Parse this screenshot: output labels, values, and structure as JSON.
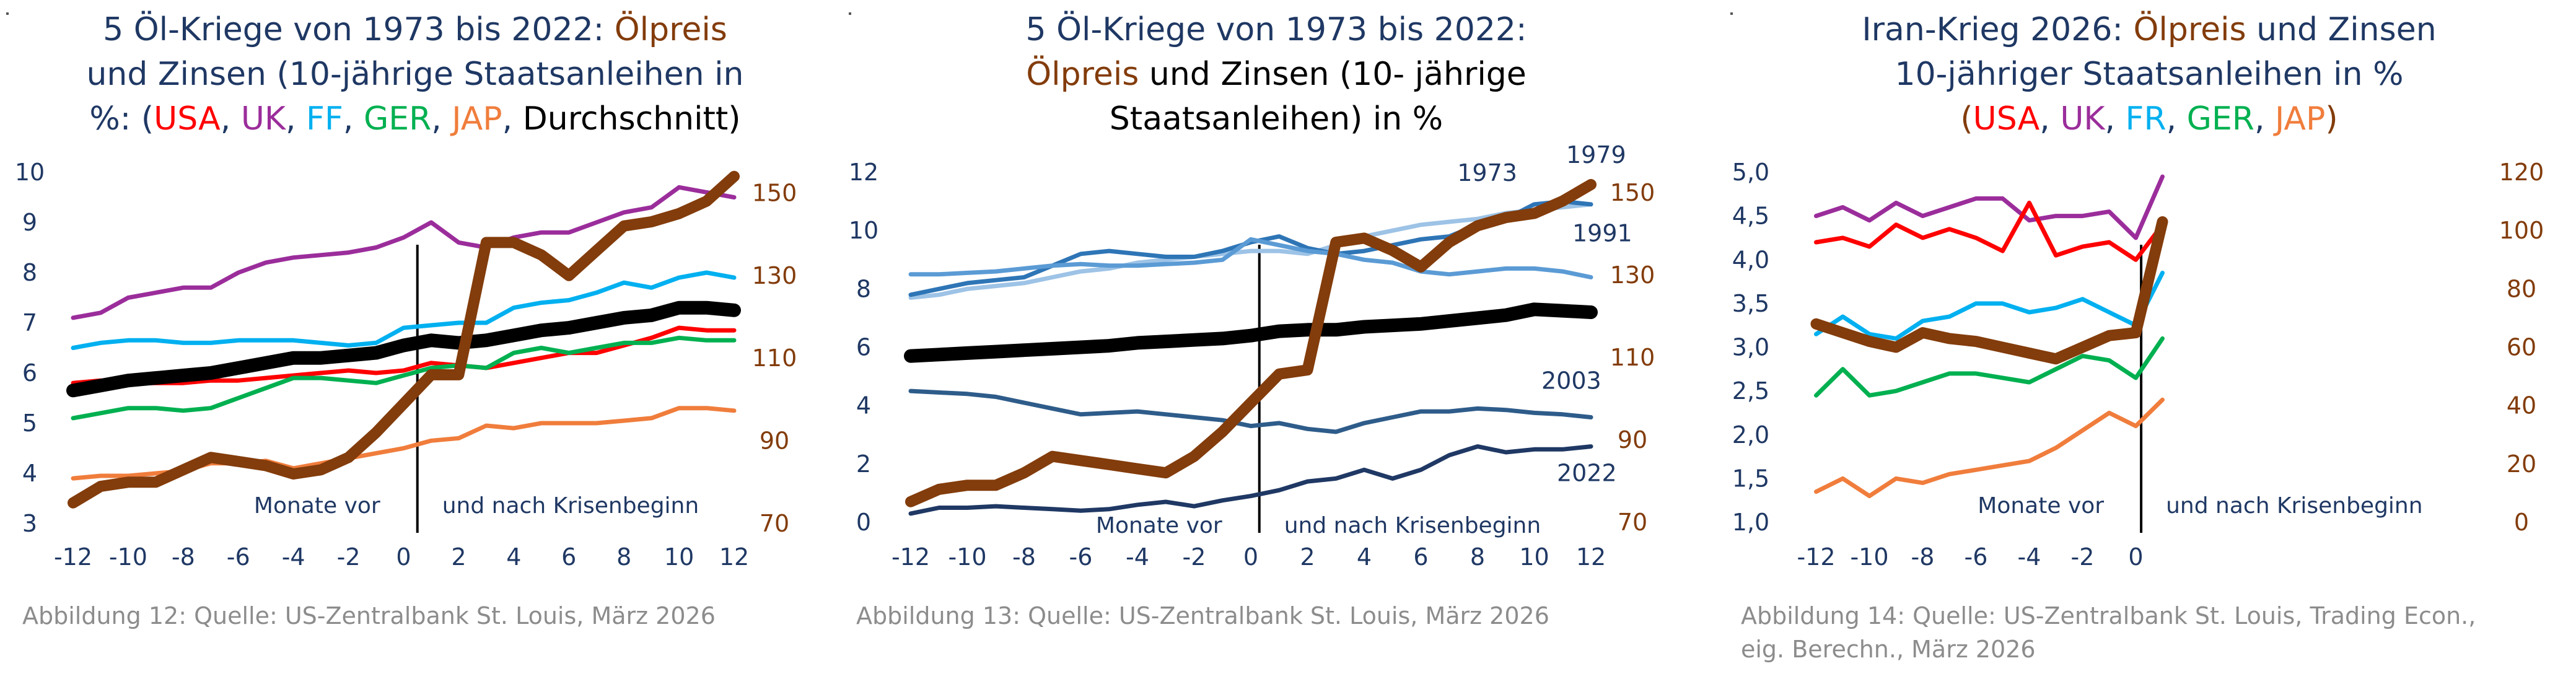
{
  "colors": {
    "USA": "#ff0000",
    "UK": "#9b2d9b",
    "FF": "#00b0f0",
    "GER": "#00b050",
    "JAP": "#f07d3c",
    "avg": "#000000",
    "oil": "#833c0b",
    "title": "#1f3864",
    "caption": "#8c8c8c"
  },
  "panel1": {
    "title_l1a": "5 Öl-Kriege von 1973 bis 2022: ",
    "title_l1b": "Ölpreis",
    "title_l2": "und Zinsen (10-jährige Staatsanleihen in",
    "title_l3a": "%: (",
    "title_usa": "USA",
    "comma": ", ",
    "title_uk": "UK",
    "title_ff": "FF",
    "title_ger": "GER",
    "title_jap": "JAP",
    "title_avg": "Durchschnitt)",
    "caption": "Abbildung 12: Quelle: US-Zentralbank St. Louis, März 2026"
  },
  "panel2": {
    "title_l1": "5 Öl-Kriege von 1973 bis 2022:",
    "title_l2a": "Ölpreis",
    "title_l2b": " und Zinsen (10- jährige",
    "title_l3": "Staatsanleihen) in %",
    "caption": "Abbildung 13: Quelle: US-Zentralbank St. Louis, März 2026"
  },
  "panel3": {
    "title_l1a": "Iran-Krieg 2026: ",
    "title_l1b": "Ölpreis",
    "title_l1c": " und Zinsen",
    "title_l2": "10-jähriger Staatsanleihen in %",
    "title_l3a": "(",
    "title_usa": "USA",
    "comma": ", ",
    "title_uk": "UK",
    "title_fr": "FR",
    "title_ger": "GER",
    "title_jap": "JAP",
    "title_l3z": ")",
    "caption_l1": "Abbildung 14: Quelle: US-Zentralbank St. Louis, Trading Econ.,",
    "caption_l2": "eig. Berechn., März 2026"
  },
  "chart_data": [
    {
      "type": "line",
      "title": "5 Öl-Kriege von 1973 bis 2022: Ölpreis und Zinsen (10-jährige Staatsanleihen in %: (USA, UK, FF, GER, JAP, Durchschnitt)",
      "x": [
        -12,
        -11,
        -10,
        -9,
        -8,
        -7,
        -6,
        -5,
        -4,
        -3,
        -2,
        -1,
        0,
        1,
        2,
        3,
        4,
        5,
        6,
        7,
        8,
        9,
        10,
        11,
        12
      ],
      "xticks": [
        "-12",
        "-10",
        "-8",
        "-6",
        "-4",
        "-2",
        "0",
        "2",
        "4",
        "6",
        "8",
        "10",
        "12"
      ],
      "xtick_values": [
        -12,
        -10,
        -8,
        -6,
        -4,
        -2,
        0,
        2,
        4,
        6,
        8,
        10,
        12
      ],
      "ylim": [
        3,
        10
      ],
      "yticks": [
        "3",
        "4",
        "5",
        "6",
        "7",
        "8",
        "9",
        "10"
      ],
      "ytick_values": [
        3,
        4,
        5,
        6,
        7,
        8,
        9,
        10
      ],
      "y2lim": [
        70,
        155
      ],
      "y2ticks": [
        "70",
        "90",
        "110",
        "130",
        "150"
      ],
      "y2tick_values": [
        70,
        90,
        110,
        130,
        150
      ],
      "annotation_left": "Monate vor",
      "annotation_right": "und nach Krisenbeginn",
      "series": [
        {
          "name": "UK",
          "color": "#9b2d9b",
          "width": 7,
          "axis": "left",
          "values": [
            7.1,
            7.2,
            7.5,
            7.6,
            7.7,
            7.7,
            8.0,
            8.2,
            8.3,
            8.35,
            8.4,
            8.5,
            8.7,
            9.0,
            8.6,
            8.5,
            8.7,
            8.8,
            8.8,
            9.0,
            9.2,
            9.3,
            9.7,
            9.6,
            9.5
          ]
        },
        {
          "name": "FF",
          "color": "#00b0f0",
          "width": 7,
          "axis": "left",
          "values": [
            6.5,
            6.6,
            6.65,
            6.65,
            6.6,
            6.6,
            6.65,
            6.65,
            6.65,
            6.6,
            6.55,
            6.6,
            6.9,
            6.95,
            7.0,
            7.0,
            7.3,
            7.4,
            7.45,
            7.6,
            7.8,
            7.7,
            7.9,
            8.0,
            7.9
          ]
        },
        {
          "name": "USA",
          "color": "#ff0000",
          "width": 7,
          "axis": "left",
          "values": [
            5.8,
            5.85,
            5.8,
            5.8,
            5.8,
            5.85,
            5.85,
            5.9,
            5.95,
            6.0,
            6.05,
            6.0,
            6.05,
            6.2,
            6.15,
            6.1,
            6.2,
            6.3,
            6.4,
            6.4,
            6.55,
            6.7,
            6.9,
            6.85,
            6.85
          ]
        },
        {
          "name": "GER",
          "color": "#00b050",
          "width": 7,
          "axis": "left",
          "values": [
            5.1,
            5.2,
            5.3,
            5.3,
            5.25,
            5.3,
            5.5,
            5.7,
            5.9,
            5.9,
            5.85,
            5.8,
            5.95,
            6.1,
            6.15,
            6.1,
            6.4,
            6.5,
            6.4,
            6.5,
            6.6,
            6.6,
            6.7,
            6.65,
            6.65
          ]
        },
        {
          "name": "JAP",
          "color": "#f07d3c",
          "width": 7,
          "axis": "left",
          "values": [
            3.9,
            3.95,
            3.95,
            4.0,
            4.05,
            4.2,
            4.2,
            4.25,
            4.1,
            4.2,
            4.3,
            4.4,
            4.5,
            4.65,
            4.7,
            4.95,
            4.9,
            5.0,
            5.0,
            5.0,
            5.05,
            5.1,
            5.3,
            5.3,
            5.25
          ]
        },
        {
          "name": "Durchschnitt",
          "color": "#000000",
          "width": 22,
          "axis": "left",
          "values": [
            5.65,
            5.75,
            5.85,
            5.9,
            5.95,
            6.0,
            6.1,
            6.2,
            6.3,
            6.3,
            6.35,
            6.4,
            6.55,
            6.65,
            6.6,
            6.65,
            6.75,
            6.85,
            6.9,
            7.0,
            7.1,
            7.15,
            7.3,
            7.3,
            7.25
          ]
        },
        {
          "name": "Ölpreis",
          "color": "#833c0b",
          "width": 18,
          "axis": "right",
          "values": [
            75,
            79,
            80,
            80,
            83,
            86,
            85,
            84,
            82,
            83,
            86,
            92,
            99,
            106,
            106,
            138,
            138,
            135,
            130,
            136,
            142,
            143,
            145,
            148,
            154
          ]
        }
      ]
    },
    {
      "type": "line",
      "title": "5 Öl-Kriege von 1973 bis 2022: Ölpreis und Zinsen (10- jährige Staatsanleihen) in %",
      "x": [
        -12,
        -11,
        -10,
        -9,
        -8,
        -7,
        -6,
        -5,
        -4,
        -3,
        -2,
        -1,
        0,
        1,
        2,
        3,
        4,
        5,
        6,
        7,
        8,
        9,
        10,
        11,
        12
      ],
      "xticks": [
        "-12",
        "-10",
        "-8",
        "-6",
        "-4",
        "-2",
        "0",
        "2",
        "4",
        "6",
        "8",
        "10",
        "12"
      ],
      "xtick_values": [
        -12,
        -10,
        -8,
        -6,
        -4,
        -2,
        0,
        2,
        4,
        6,
        8,
        10,
        12
      ],
      "ylim": [
        0,
        12
      ],
      "yticks": [
        "0",
        "2",
        "4",
        "6",
        "8",
        "10",
        "12"
      ],
      "ytick_values": [
        0,
        2,
        4,
        6,
        8,
        10,
        12
      ],
      "y2lim": [
        70,
        155
      ],
      "y2ticks": [
        "70",
        "90",
        "110",
        "130",
        "150"
      ],
      "y2tick_values": [
        70,
        90,
        110,
        130,
        150
      ],
      "annotation_left": "Monate vor",
      "annotation_right": "und nach Krisenbeginn",
      "series": [
        {
          "name": "1973",
          "color": "#9dc3e6",
          "width": 7,
          "axis": "left",
          "label": "1973",
          "values": [
            7.7,
            7.8,
            8.0,
            8.1,
            8.2,
            8.4,
            8.6,
            8.7,
            8.9,
            9.0,
            9.1,
            9.2,
            9.3,
            9.3,
            9.2,
            9.5,
            9.8,
            10.0,
            10.2,
            10.3,
            10.4,
            10.6,
            10.7,
            10.8,
            10.9
          ]
        },
        {
          "name": "1979",
          "color": "#2e75b6",
          "width": 7,
          "axis": "left",
          "label": "1979",
          "values": [
            7.8,
            8.0,
            8.2,
            8.3,
            8.4,
            8.8,
            9.2,
            9.3,
            9.2,
            9.1,
            9.1,
            9.3,
            9.6,
            9.8,
            9.4,
            9.2,
            9.3,
            9.5,
            9.7,
            9.8,
            10.2,
            10.4,
            10.9,
            11.0,
            10.9
          ]
        },
        {
          "name": "1991",
          "color": "#5b9bd5",
          "width": 7,
          "axis": "left",
          "label": "1991",
          "values": [
            8.5,
            8.5,
            8.55,
            8.6,
            8.7,
            8.8,
            8.85,
            8.8,
            8.8,
            8.85,
            8.9,
            9.0,
            9.7,
            9.5,
            9.3,
            9.2,
            9.0,
            8.9,
            8.6,
            8.5,
            8.6,
            8.7,
            8.7,
            8.6,
            8.4
          ]
        },
        {
          "name": "Durchschnitt",
          "color": "#000000",
          "width": 22,
          "axis": "left",
          "values": [
            5.7,
            5.75,
            5.8,
            5.85,
            5.9,
            5.95,
            6.0,
            6.05,
            6.15,
            6.2,
            6.25,
            6.3,
            6.4,
            6.55,
            6.6,
            6.6,
            6.7,
            6.75,
            6.8,
            6.9,
            7.0,
            7.1,
            7.3,
            7.25,
            7.2
          ]
        },
        {
          "name": "2003",
          "color": "#2e5c8a",
          "width": 7,
          "axis": "left",
          "label": "2003",
          "values": [
            4.5,
            4.45,
            4.4,
            4.3,
            4.1,
            3.9,
            3.7,
            3.75,
            3.8,
            3.7,
            3.6,
            3.5,
            3.3,
            3.4,
            3.2,
            3.1,
            3.4,
            3.6,
            3.8,
            3.8,
            3.9,
            3.85,
            3.75,
            3.7,
            3.6
          ]
        },
        {
          "name": "2022",
          "color": "#1f3864",
          "width": 7,
          "axis": "left",
          "label": "2022",
          "values": [
            0.3,
            0.5,
            0.5,
            0.55,
            0.5,
            0.45,
            0.4,
            0.45,
            0.6,
            0.7,
            0.55,
            0.75,
            0.9,
            1.1,
            1.4,
            1.5,
            1.8,
            1.5,
            1.8,
            2.3,
            2.6,
            2.4,
            2.5,
            2.5,
            2.6
          ]
        },
        {
          "name": "Ölpreis",
          "color": "#833c0b",
          "width": 18,
          "axis": "right",
          "values": [
            75,
            78,
            79,
            79,
            82,
            86,
            85,
            84,
            83,
            82,
            86,
            92,
            99,
            106,
            107,
            138,
            139,
            136,
            132,
            138,
            142,
            144,
            145,
            148,
            152
          ]
        }
      ]
    },
    {
      "type": "line",
      "title": "Iran-Krieg 2026: Ölpreis und Zinsen 10-jähriger Staatsanleihen in % (USA, UK, FR, GER, JAP)",
      "x": [
        -12,
        -11,
        -10,
        -9,
        -8,
        -7,
        -6,
        -5,
        -4,
        -3,
        -2,
        -1,
        0,
        1
      ],
      "xticks": [
        "-12",
        "-10",
        "-8",
        "-6",
        "-4",
        "-2",
        "0"
      ],
      "xtick_values": [
        -12,
        -10,
        -8,
        -6,
        -4,
        -2,
        0
      ],
      "xlim": [
        -12.5,
        12.5
      ],
      "ylim": [
        1.0,
        5.0
      ],
      "yticks": [
        "1,0",
        "1,5",
        "2,0",
        "2,5",
        "3,0",
        "3,5",
        "4,0",
        "4,5",
        "5,0"
      ],
      "ytick_values": [
        1.0,
        1.5,
        2.0,
        2.5,
        3.0,
        3.5,
        4.0,
        4.5,
        5.0
      ],
      "y2lim": [
        0,
        120
      ],
      "y2ticks": [
        "0",
        "20",
        "40",
        "60",
        "80",
        "100",
        "120"
      ],
      "y2tick_values": [
        0,
        20,
        40,
        60,
        80,
        100,
        120
      ],
      "annotation_left": "Monate vor",
      "annotation_right": "und nach Krisenbeginn",
      "series": [
        {
          "name": "UK",
          "color": "#9b2d9b",
          "width": 7,
          "axis": "left",
          "values": [
            4.5,
            4.6,
            4.45,
            4.65,
            4.5,
            4.6,
            4.7,
            4.7,
            4.45,
            4.5,
            4.5,
            4.55,
            4.25,
            4.95
          ]
        },
        {
          "name": "USA",
          "color": "#ff0000",
          "width": 7,
          "axis": "left",
          "values": [
            4.2,
            4.25,
            4.15,
            4.4,
            4.25,
            4.35,
            4.25,
            4.1,
            4.65,
            4.05,
            4.15,
            4.2,
            4.0,
            4.4
          ]
        },
        {
          "name": "FR",
          "color": "#00b0f0",
          "width": 7,
          "axis": "left",
          "values": [
            3.15,
            3.35,
            3.15,
            3.1,
            3.3,
            3.35,
            3.5,
            3.5,
            3.4,
            3.45,
            3.55,
            3.4,
            3.25,
            3.85
          ]
        },
        {
          "name": "GER",
          "color": "#00b050",
          "width": 7,
          "axis": "left",
          "values": [
            2.45,
            2.75,
            2.45,
            2.5,
            2.6,
            2.7,
            2.7,
            2.65,
            2.6,
            2.75,
            2.9,
            2.85,
            2.65,
            3.1
          ]
        },
        {
          "name": "JAP",
          "color": "#f07d3c",
          "width": 7,
          "axis": "left",
          "values": [
            1.35,
            1.5,
            1.3,
            1.5,
            1.45,
            1.55,
            1.6,
            1.65,
            1.7,
            1.85,
            2.05,
            2.25,
            2.1,
            2.4
          ]
        },
        {
          "name": "Ölpreis",
          "color": "#833c0b",
          "width": 18,
          "axis": "right",
          "values": [
            68,
            65,
            62,
            60,
            65,
            63,
            62,
            60,
            58,
            56,
            60,
            64,
            65,
            103
          ]
        }
      ]
    }
  ]
}
